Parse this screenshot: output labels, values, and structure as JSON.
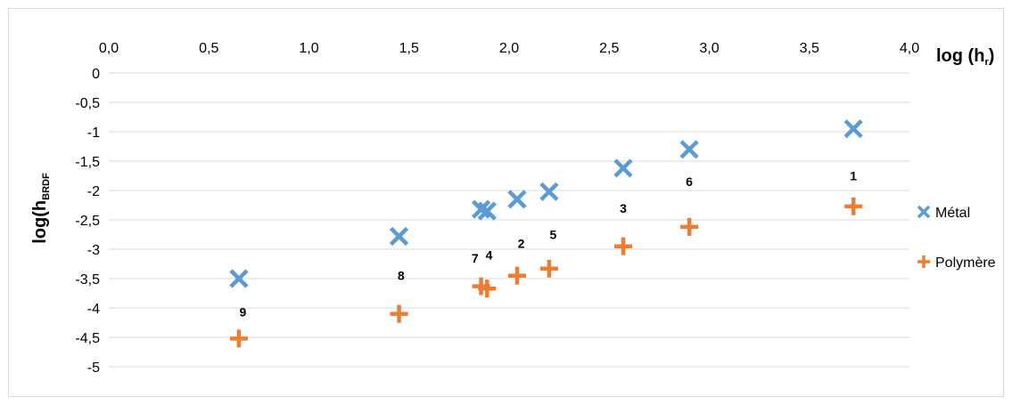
{
  "chart_data": {
    "type": "scatter",
    "xlabel": "log (h",
    "xlabel_sub": "r",
    "xlabel_end": ")",
    "ylabel": "log(h",
    "ylabel_sub": "BRDF",
    "xlim": [
      0,
      4
    ],
    "ylim": [
      -5,
      0
    ],
    "x_ticks": [
      "0,0",
      "0,5",
      "1,0",
      "1,5",
      "2,0",
      "2,5",
      "3,0",
      "3,5",
      "4,0"
    ],
    "y_ticks": [
      "0",
      "-0,5",
      "-1",
      "-1,5",
      "-2",
      "-2,5",
      "-3",
      "-3,5",
      "-4",
      "-4,5",
      "-5"
    ],
    "x_axis_position": "top",
    "grid": "horizontal",
    "legend_position": "right",
    "series": [
      {
        "name": "Métal",
        "marker": "x",
        "color": "#5b9bd5",
        "x": [
          3.72,
          2.04,
          2.57,
          1.89,
          2.2,
          2.9,
          1.86,
          1.45,
          0.65
        ],
        "y": [
          -0.95,
          -2.15,
          -1.62,
          -2.35,
          -2.02,
          -1.3,
          -2.32,
          -2.78,
          -3.5
        ]
      },
      {
        "name": "Polymère",
        "marker": "plus",
        "color": "#ed7d31",
        "x": [
          3.72,
          2.04,
          2.57,
          1.89,
          2.2,
          2.9,
          1.86,
          1.45,
          0.65
        ],
        "y": [
          -2.27,
          -3.45,
          -2.95,
          -3.67,
          -3.33,
          -2.62,
          -3.63,
          -4.1,
          -4.52
        ]
      }
    ],
    "point_labels": [
      {
        "text": "1",
        "x": 3.72,
        "y": -1.75
      },
      {
        "text": "2",
        "x": 2.06,
        "y": -2.9
      },
      {
        "text": "3",
        "x": 2.57,
        "y": -2.3
      },
      {
        "text": "4",
        "x": 1.9,
        "y": -3.1
      },
      {
        "text": "5",
        "x": 2.22,
        "y": -2.75
      },
      {
        "text": "6",
        "x": 2.9,
        "y": -1.85
      },
      {
        "text": "7",
        "x": 1.83,
        "y": -3.15
      },
      {
        "text": "8",
        "x": 1.46,
        "y": -3.45
      },
      {
        "text": "9",
        "x": 0.67,
        "y": -4.07
      }
    ]
  }
}
